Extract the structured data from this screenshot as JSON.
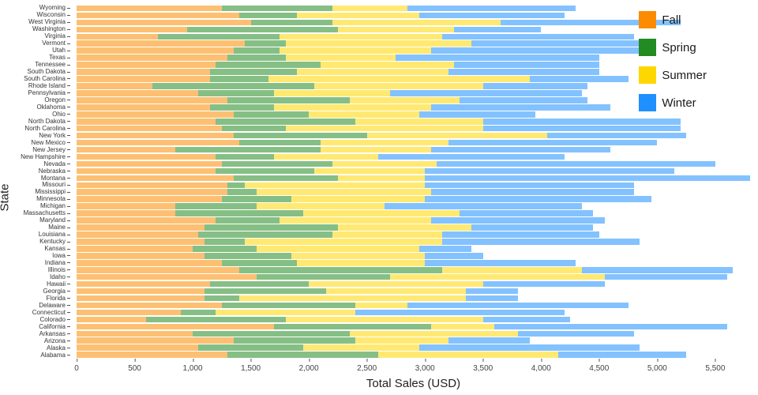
{
  "chart_data": {
    "type": "bar",
    "orientation": "horizontal",
    "stacked": true,
    "title": "",
    "xlabel": "Total Sales (USD)",
    "ylabel": "State",
    "xlim": [
      0,
      5800
    ],
    "grid": false,
    "legend_position": "top-right",
    "xticks": [
      0,
      500,
      1000,
      1500,
      2000,
      2500,
      3000,
      3500,
      4000,
      4500,
      5000,
      5500
    ],
    "xtick_labels": [
      "0",
      "500",
      "1,000",
      "1,500",
      "2,000",
      "2,500",
      "3,000",
      "3,500",
      "4,000",
      "4,500",
      "5,000",
      "5,500"
    ],
    "categories": [
      "Wyoming",
      "Wisconsin",
      "West Virginia",
      "Washington",
      "Virginia",
      "Vermont",
      "Utah",
      "Texas",
      "Tennessee",
      "South Dakota",
      "South Carolina",
      "Rhode Island",
      "Pennsylvania",
      "Oregon",
      "Oklahoma",
      "Ohio",
      "North Dakota",
      "North Carolina",
      "New York",
      "New Mexico",
      "New Jersey",
      "New Hampshire",
      "Nevada",
      "Nebraska",
      "Montana",
      "Missouri",
      "Mississippi",
      "Minnesota",
      "Michigan",
      "Massachusetts",
      "Maryland",
      "Maine",
      "Louisiana",
      "Kentucky",
      "Kansas",
      "Iowa",
      "Indiana",
      "Illinois",
      "Idaho",
      "Hawaii",
      "Georgia",
      "Florida",
      "Delaware",
      "Connecticut",
      "Colorado",
      "California",
      "Arkansas",
      "Arizona",
      "Alaska",
      "Alabama"
    ],
    "series": [
      {
        "name": "Fall",
        "color": "#FB8C00",
        "values": [
          1250,
          1400,
          1500,
          950,
          700,
          1450,
          1350,
          1300,
          1200,
          1150,
          1150,
          650,
          1050,
          1300,
          1150,
          1350,
          1200,
          1250,
          1350,
          1400,
          850,
          1200,
          1250,
          1200,
          1350,
          1300,
          1300,
          1250,
          850,
          850,
          1200,
          1100,
          1050,
          1100,
          1000,
          1100,
          1250,
          1400,
          1550,
          1150,
          1100,
          1100,
          1250,
          900,
          600,
          1700,
          1000,
          1350,
          1050,
          1300
        ]
      },
      {
        "name": "Spring",
        "color": "#228B22",
        "values": [
          950,
          500,
          700,
          1300,
          1050,
          350,
          400,
          500,
          900,
          750,
          500,
          1400,
          650,
          1050,
          550,
          650,
          1200,
          550,
          1150,
          700,
          1250,
          500,
          950,
          850,
          900,
          150,
          250,
          600,
          700,
          1100,
          550,
          1150,
          1150,
          350,
          550,
          750,
          650,
          1750,
          1150,
          850,
          1050,
          300,
          1150,
          300,
          1200,
          1350,
          1350,
          1050,
          900,
          1300
        ]
      },
      {
        "name": "Summer",
        "color": "#FFD700",
        "values": [
          650,
          1050,
          1450,
          1000,
          1400,
          1600,
          1300,
          950,
          1150,
          1300,
          2250,
          1450,
          1000,
          950,
          1350,
          950,
          1100,
          1700,
          1550,
          1100,
          950,
          900,
          900,
          950,
          750,
          1550,
          1500,
          1150,
          1100,
          1350,
          1300,
          1150,
          950,
          1700,
          1400,
          1150,
          1100,
          1200,
          1850,
          1500,
          1200,
          1950,
          450,
          1200,
          1700,
          550,
          1450,
          800,
          1000,
          1550
        ]
      },
      {
        "name": "Winter",
        "color": "#1E90FF",
        "values": [
          1450,
          1250,
          1550,
          750,
          1650,
          1450,
          1800,
          1750,
          1250,
          1300,
          850,
          900,
          1650,
          1100,
          1550,
          1000,
          1700,
          1700,
          1200,
          1800,
          1550,
          1600,
          2400,
          2150,
          2800,
          1800,
          1750,
          1950,
          1700,
          1150,
          1500,
          1050,
          1350,
          1700,
          450,
          500,
          1300,
          1300,
          1050,
          1050,
          450,
          450,
          1900,
          1800,
          750,
          2000,
          1000,
          700,
          1900,
          1100
        ]
      }
    ]
  }
}
